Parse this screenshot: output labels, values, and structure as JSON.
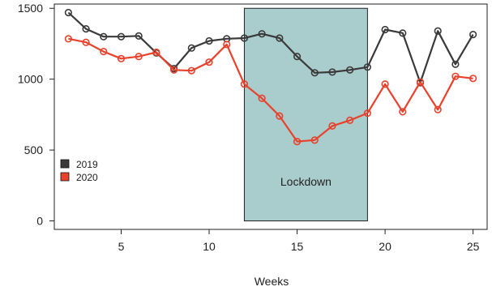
{
  "chart_data": {
    "type": "line",
    "xlabel": "Weeks",
    "ylabel": "",
    "title": "",
    "xlim": [
      1.2,
      25.8
    ],
    "ylim": [
      -60,
      1530
    ],
    "xticks": [
      5,
      10,
      15,
      20,
      25
    ],
    "yticks": [
      0,
      500,
      1000,
      1500
    ],
    "grid": false,
    "legend_position": "bottom-left",
    "x": [
      2,
      3,
      4,
      5,
      6,
      7,
      8,
      9,
      10,
      11,
      12,
      13,
      14,
      15,
      16,
      17,
      18,
      19,
      20,
      21,
      22,
      23,
      24,
      25
    ],
    "series": [
      {
        "name": "2019",
        "color": "#3a3a3a",
        "values": [
          1470,
          1355,
          1300,
          1300,
          1305,
          1185,
          1075,
          1220,
          1270,
          1285,
          1290,
          1320,
          1290,
          1160,
          1045,
          1050,
          1065,
          1085,
          1350,
          1325,
          975,
          1340,
          1105,
          1315
        ]
      },
      {
        "name": "2020",
        "color": "#e8412c",
        "values": [
          1285,
          1260,
          1195,
          1145,
          1160,
          1190,
          1065,
          1060,
          1120,
          1245,
          965,
          865,
          740,
          560,
          570,
          670,
          710,
          760,
          965,
          770,
          980,
          785,
          1020,
          1005
        ]
      }
    ],
    "annotations": [
      {
        "label": "Lockdown",
        "x_start": 12,
        "x_end": 19,
        "y_start": 0,
        "y_end": 1500,
        "fill": "#a9cccc"
      }
    ]
  }
}
